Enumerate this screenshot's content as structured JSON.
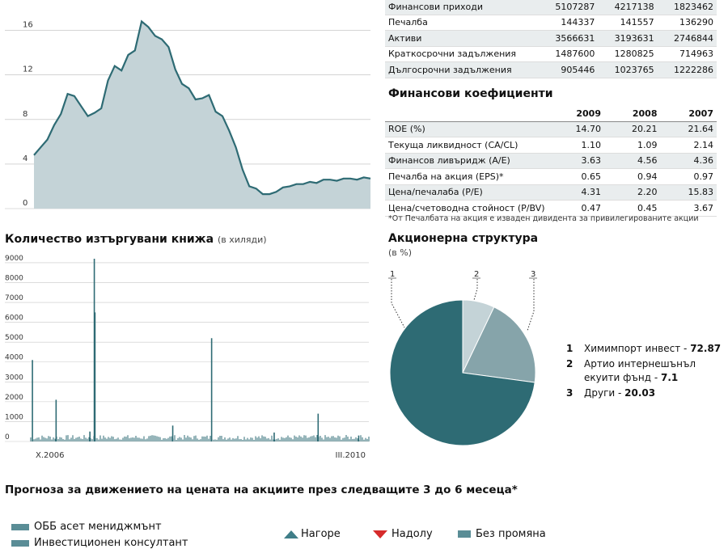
{
  "price_chart": {
    "chart_data": {
      "type": "area",
      "title": "",
      "xlabel": "",
      "ylabel": "",
      "ylim": [
        0,
        18
      ],
      "yticks": [
        "0",
        "4",
        "8",
        "12",
        "16"
      ],
      "grid": true,
      "series": [
        {
          "values": [
            4.8,
            5.5,
            6.2,
            7.5,
            8.5,
            10.3,
            10.1,
            9.2,
            8.3,
            8.6,
            9.0,
            11.5,
            12.8,
            12.4,
            13.8,
            14.2,
            16.8,
            16.3,
            15.5,
            15.2,
            14.5,
            12.5,
            11.2,
            10.8,
            9.8,
            9.9,
            10.2,
            8.7,
            8.3,
            7.0,
            5.5,
            3.5,
            2.0,
            1.8,
            1.3,
            1.3,
            1.5,
            1.9,
            2.0,
            2.2,
            2.2,
            2.4,
            2.3,
            2.6,
            2.6,
            2.5,
            2.7,
            2.7,
            2.6,
            2.8,
            2.7
          ]
        }
      ]
    },
    "colors": {
      "fill": "#c4d3d7",
      "line": "#2e6b74"
    }
  },
  "volume_chart": {
    "title": "Количество изтъргувани книжа",
    "subtitle": "(в хиляди)",
    "chart_data": {
      "type": "bar",
      "title": "Количество изтъргувани книжа",
      "ylabel": "",
      "ylim": [
        0,
        9200
      ],
      "yticks": [
        "0",
        "1000",
        "2000",
        "3000",
        "4000",
        "5000",
        "6000",
        "7000",
        "8000",
        "9000"
      ],
      "x_start_label": "X.2006",
      "x_end_label": "III.2010",
      "spikes": [
        {
          "t": 0.005,
          "v": 4100
        },
        {
          "t": 0.075,
          "v": 2100
        },
        {
          "t": 0.175,
          "v": 500
        },
        {
          "t": 0.188,
          "v": 9200
        },
        {
          "t": 0.19,
          "v": 6500
        },
        {
          "t": 0.42,
          "v": 800
        },
        {
          "t": 0.535,
          "v": 5200
        },
        {
          "t": 0.72,
          "v": 450
        },
        {
          "t": 0.85,
          "v": 1400
        },
        {
          "t": 0.97,
          "v": 300
        }
      ]
    },
    "color": "#2e6b74"
  },
  "financials": {
    "rows": [
      {
        "label": "Финансови приходи",
        "v1": "5107287",
        "v2": "4217138",
        "v3": "1823462"
      },
      {
        "label": "Печалба",
        "v1": "144337",
        "v2": "141557",
        "v3": "136290"
      },
      {
        "label": "Активи",
        "v1": "3566631",
        "v2": "3193631",
        "v3": "2746844"
      },
      {
        "label": "Краткосрочни задължения",
        "v1": "1487600",
        "v2": "1280825",
        "v3": "714963"
      },
      {
        "label": "Дългосрочни задължения",
        "v1": "905446",
        "v2": "1023765",
        "v3": "1222286"
      }
    ]
  },
  "ratios": {
    "title": "Финансови коефициенти",
    "years": [
      "2009",
      "2008",
      "2007"
    ],
    "rows": [
      {
        "label": "ROE (%)",
        "v1": "14.70",
        "v2": "20.21",
        "v3": "21.64"
      },
      {
        "label": "Текуща ликвидност (CA/CL)",
        "v1": "1.10",
        "v2": "1.09",
        "v3": "2.14"
      },
      {
        "label": "Финансов ливъридж (A/E)",
        "v1": "3.63",
        "v2": "4.56",
        "v3": "4.36"
      },
      {
        "label": "Печалба на акция (EPS)*",
        "v1": "0.65",
        "v2": "0.94",
        "v3": "0.97"
      },
      {
        "label": "Цена/печалаба (P/E)",
        "v1": "4.31",
        "v2": "2.20",
        "v3": "15.83"
      },
      {
        "label": "Цена/счетоводна стойност (P/BV)",
        "v1": "0.47",
        "v2": "0.45",
        "v3": "3.67"
      }
    ],
    "footnote": "*От Печалбата на акция е изваден дивидента за привилегированите акции"
  },
  "shareholders": {
    "title": "Акционерна структура",
    "subtitle": "(в %)",
    "chart_data": {
      "type": "pie",
      "slices": [
        {
          "id": "1",
          "name": "Химимпорт инвест",
          "value": 72.87,
          "value_label": "72.87",
          "color": "#2e6b74"
        },
        {
          "id": "2",
          "name": "Артио интернешънъл екуити фънд",
          "value": 7.1,
          "value_label": "7.1",
          "color": "#c4d3d7"
        },
        {
          "id": "3",
          "name": "Други",
          "value": 20.03,
          "value_label": "20.03",
          "color": "#86a4aa"
        }
      ]
    },
    "legend": [
      {
        "n": "1",
        "line1": "Химимпорт инвест - ",
        "bold": "72.87",
        "line2": ""
      },
      {
        "n": "2",
        "line1": "Артио интернешънъл",
        "line2": "екуити фънд - ",
        "bold": "7.1"
      },
      {
        "n": "3",
        "line1": "Други - ",
        "bold": "20.03",
        "line2": ""
      }
    ]
  },
  "forecast": {
    "title": "Прогноза за движението на цената на акциите през следващите 3 до 6 месеца*",
    "analysts": [
      "ОББ асет мениджмънт",
      "Инвестиционен консултант"
    ],
    "legend_up": "Нагоре",
    "legend_down": "Надолу",
    "legend_flat": "Без промяна",
    "colors": {
      "up": "#3f7e88",
      "down": "#d62b2b",
      "flat": "#3f7e88"
    }
  }
}
